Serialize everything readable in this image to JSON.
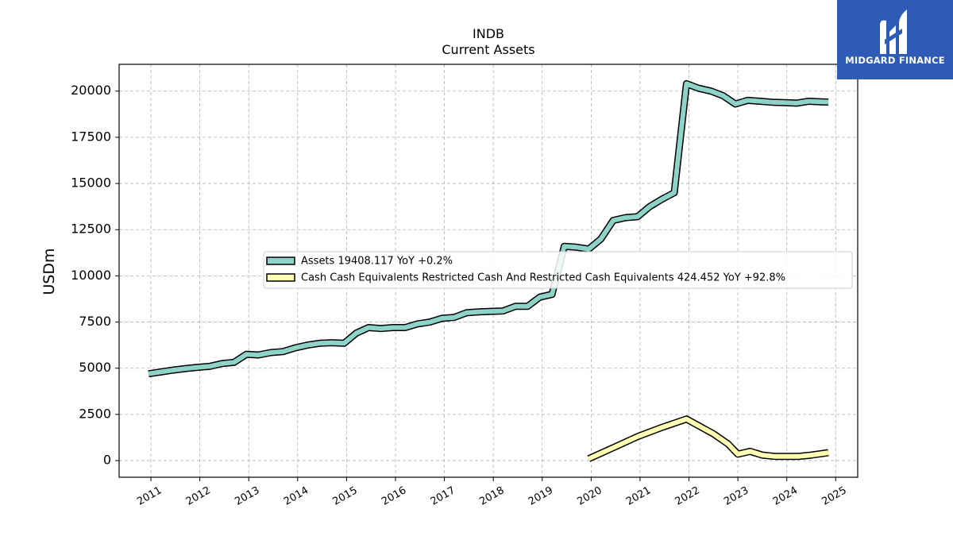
{
  "chart_data": {
    "type": "line",
    "title": "INDB",
    "subtitle": "Current  Assets",
    "ylabel": "USDm",
    "xlabel": "",
    "x_ticks": [
      "2011",
      "2012",
      "2013",
      "2014",
      "2015",
      "2016",
      "2017",
      "2018",
      "2019",
      "2020",
      "2021",
      "2022",
      "2023",
      "2024",
      "2025"
    ],
    "y_ticks": [
      "0",
      "2500",
      "5000",
      "7500",
      "10000",
      "12500",
      "15000",
      "17500",
      "20000"
    ],
    "ylim": [
      -900,
      21450
    ],
    "xlim": [
      2010.35,
      2025.45
    ],
    "grid": true,
    "legend_position": "center",
    "series": [
      {
        "name": "Assets",
        "legend_label": "Assets  19408.117 YoY +0.2%",
        "color": "#8dd3c7",
        "points": [
          [
            2010.95,
            4700
          ],
          [
            2011.2,
            4800
          ],
          [
            2011.45,
            4900
          ],
          [
            2011.7,
            4980
          ],
          [
            2011.95,
            5050
          ],
          [
            2012.2,
            5100
          ],
          [
            2012.45,
            5250
          ],
          [
            2012.7,
            5320
          ],
          [
            2012.95,
            5750
          ],
          [
            2013.2,
            5720
          ],
          [
            2013.45,
            5850
          ],
          [
            2013.7,
            5900
          ],
          [
            2013.95,
            6100
          ],
          [
            2014.2,
            6250
          ],
          [
            2014.45,
            6350
          ],
          [
            2014.7,
            6380
          ],
          [
            2014.95,
            6350
          ],
          [
            2015.2,
            6900
          ],
          [
            2015.45,
            7200
          ],
          [
            2015.7,
            7150
          ],
          [
            2015.95,
            7200
          ],
          [
            2016.2,
            7200
          ],
          [
            2016.45,
            7400
          ],
          [
            2016.7,
            7500
          ],
          [
            2016.95,
            7700
          ],
          [
            2017.2,
            7750
          ],
          [
            2017.45,
            8000
          ],
          [
            2017.7,
            8050
          ],
          [
            2017.95,
            8080
          ],
          [
            2018.2,
            8100
          ],
          [
            2018.45,
            8350
          ],
          [
            2018.7,
            8350
          ],
          [
            2018.95,
            8850
          ],
          [
            2019.2,
            9000
          ],
          [
            2019.45,
            11600
          ],
          [
            2019.7,
            11550
          ],
          [
            2019.95,
            11450
          ],
          [
            2020.2,
            12000
          ],
          [
            2020.45,
            13000
          ],
          [
            2020.7,
            13150
          ],
          [
            2020.95,
            13200
          ],
          [
            2021.2,
            13750
          ],
          [
            2021.45,
            14150
          ],
          [
            2021.7,
            14500
          ],
          [
            2021.95,
            20400
          ],
          [
            2022.2,
            20150
          ],
          [
            2022.45,
            20000
          ],
          [
            2022.7,
            19750
          ],
          [
            2022.95,
            19300
          ],
          [
            2023.2,
            19500
          ],
          [
            2023.45,
            19450
          ],
          [
            2023.7,
            19400
          ],
          [
            2023.95,
            19380
          ],
          [
            2024.2,
            19350
          ],
          [
            2024.45,
            19450
          ],
          [
            2024.7,
            19420
          ],
          [
            2024.85,
            19410
          ]
        ]
      },
      {
        "name": "Cash Cash Equivalents Restricted Cash And Restricted Cash Equivalents",
        "legend_label": "Cash Cash Equivalents Restricted Cash And Restricted Cash Equivalents  424.452 YoY +92.8%",
        "color": "#ffffb3",
        "points": [
          [
            2019.95,
            100
          ],
          [
            2020.45,
            700
          ],
          [
            2020.95,
            1300
          ],
          [
            2021.45,
            1800
          ],
          [
            2021.95,
            2250
          ],
          [
            2022.5,
            1450
          ],
          [
            2022.8,
            900
          ],
          [
            2023.0,
            350
          ],
          [
            2023.25,
            500
          ],
          [
            2023.5,
            300
          ],
          [
            2023.75,
            230
          ],
          [
            2024.0,
            230
          ],
          [
            2024.25,
            230
          ],
          [
            2024.5,
            300
          ],
          [
            2024.85,
            430
          ]
        ]
      }
    ]
  },
  "logo": {
    "text": "MIDGARD FINANCE",
    "color": "#2d5bb5"
  }
}
